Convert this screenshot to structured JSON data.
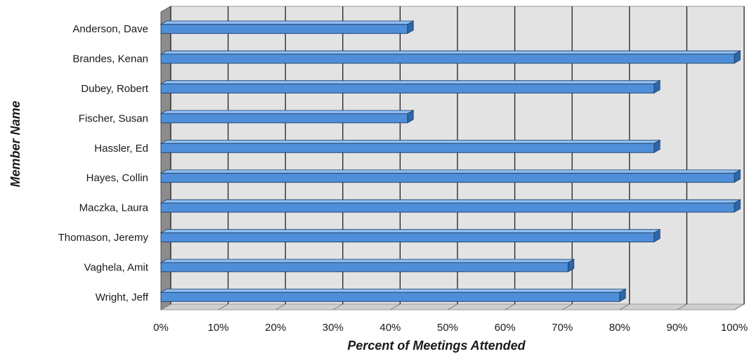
{
  "chart_data": {
    "type": "bar",
    "orientation": "horizontal",
    "title": "",
    "xlabel": "Percent of Meetings Attended",
    "ylabel": "Member Name",
    "categories": [
      "Anderson, Dave",
      "Brandes, Kenan",
      "Dubey, Robert",
      "Fischer, Susan",
      "Hassler, Ed",
      "Hayes, Collin",
      "Maczka, Laura",
      "Thomason, Jeremy",
      "Vaghela, Amit",
      "Wright, Jeff"
    ],
    "values": [
      0.43,
      1.0,
      0.86,
      0.43,
      0.86,
      1.0,
      1.0,
      0.86,
      0.71,
      0.8
    ],
    "xlim": [
      0,
      1
    ],
    "xticks": [
      0,
      0.1,
      0.2,
      0.3,
      0.4,
      0.5,
      0.6,
      0.7,
      0.8,
      0.9,
      1.0
    ],
    "xtick_labels": [
      "0%",
      "10%",
      "20%",
      "30%",
      "40%",
      "50%",
      "60%",
      "70%",
      "80%",
      "90%",
      "100%"
    ],
    "grid": true,
    "legend": "none",
    "style": "3d",
    "colors": {
      "bar": "#4f8fd9",
      "bar_top": "#8dbcef",
      "bar_side": "#2f66a8",
      "plot_back": "#e3e3e3",
      "plot_wall": "#8c8c8c",
      "gridline": "#1f1f1f"
    }
  }
}
